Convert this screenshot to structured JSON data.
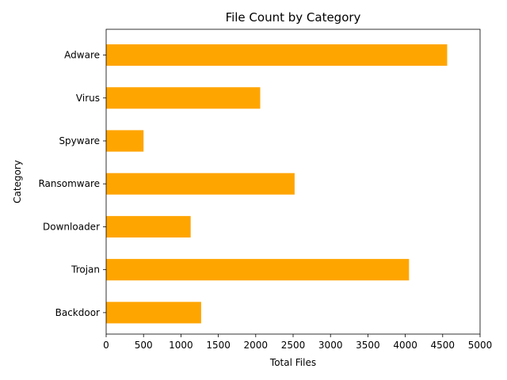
{
  "chart_data": {
    "type": "bar",
    "orientation": "horizontal",
    "title": "File Count by Category",
    "xlabel": "Total Files",
    "ylabel": "Category",
    "categories": [
      "Backdoor",
      "Trojan",
      "Downloader",
      "Ransomware",
      "Spyware",
      "Virus",
      "Adware"
    ],
    "values": [
      1270,
      4050,
      1130,
      2520,
      500,
      2060,
      4560
    ],
    "xlim": [
      0,
      5000
    ],
    "xticks": [
      0,
      500,
      1000,
      1500,
      2000,
      2500,
      3000,
      3500,
      4000,
      4500,
      5000
    ],
    "bar_color": "#ffa500",
    "grid": false,
    "legend": "none"
  }
}
